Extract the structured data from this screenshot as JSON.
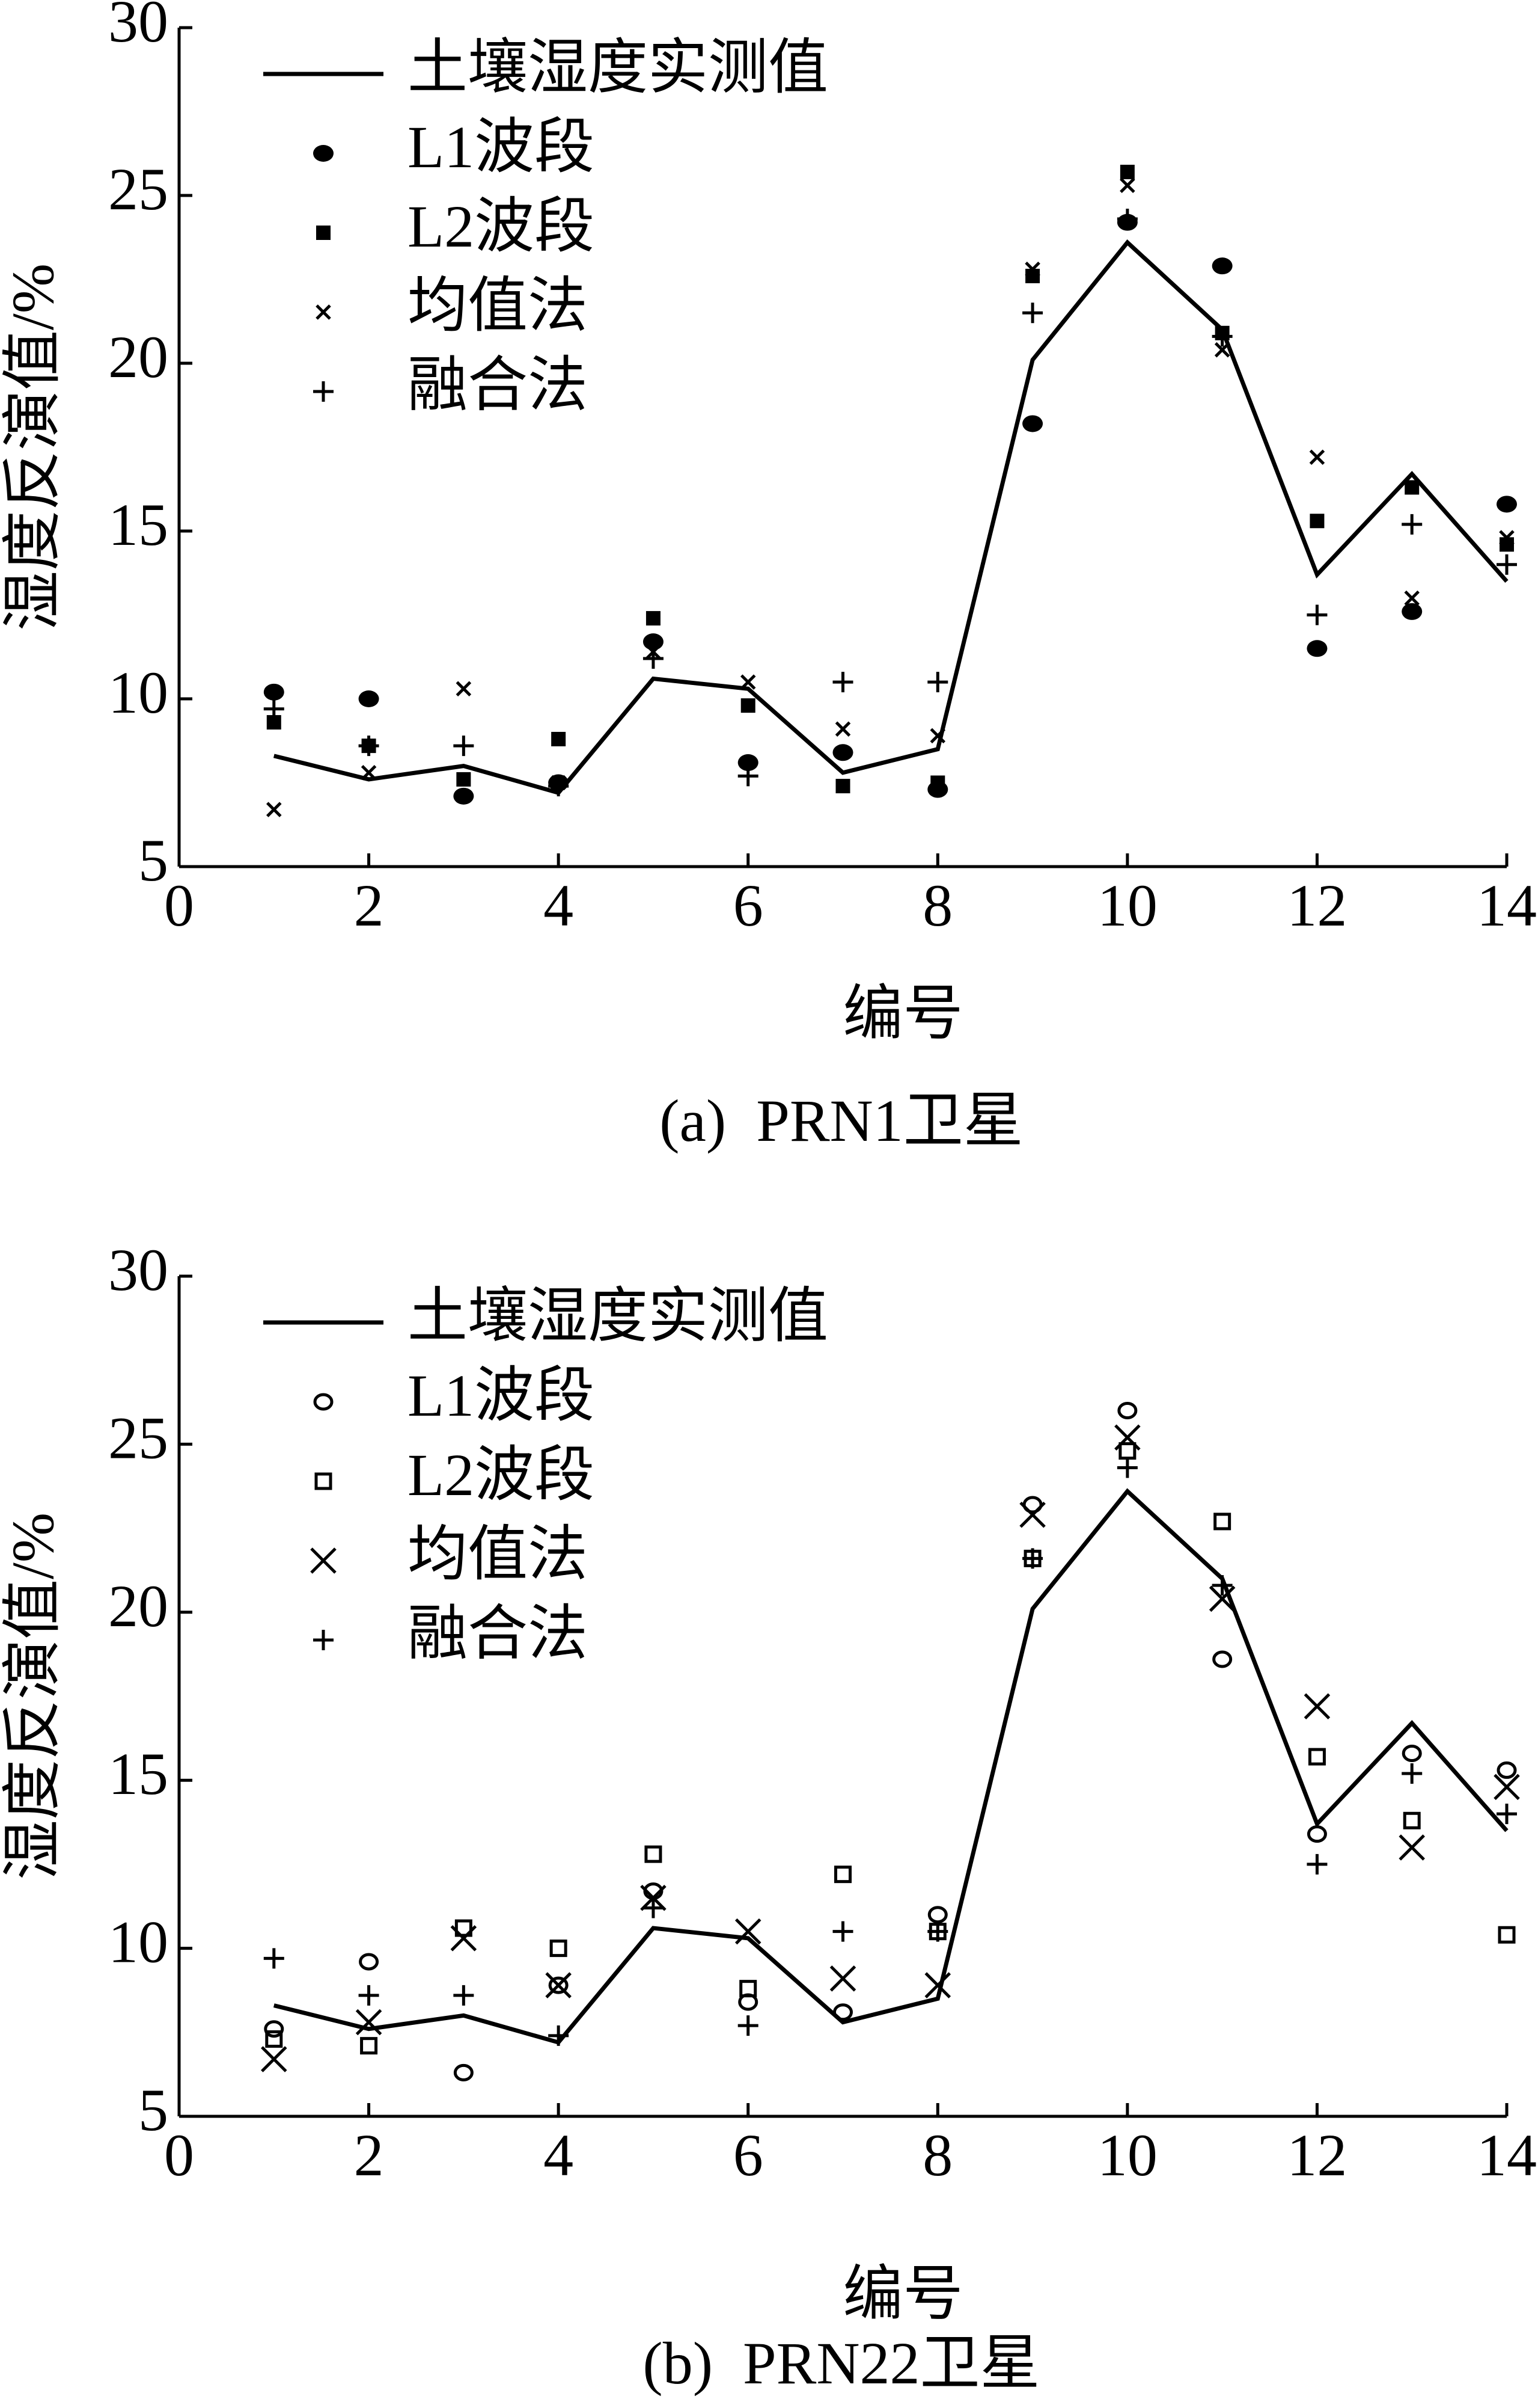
{
  "chart_data": [
    {
      "type": "line",
      "caption": "(a)  PRN1卫星",
      "x_label": "编号",
      "y_label": "湿度反演值/%",
      "x": [
        1,
        2,
        3,
        4,
        5,
        6,
        7,
        8,
        9,
        10,
        11,
        12,
        13,
        14
      ],
      "xlim": [
        0,
        14
      ],
      "xticks": [
        0,
        2,
        4,
        6,
        8,
        10,
        12,
        14
      ],
      "ylim": [
        5,
        30
      ],
      "yticks": [
        5,
        10,
        15,
        20,
        25,
        30
      ],
      "grid": false,
      "legend": "upper left",
      "series": [
        {
          "name": "土壤湿度实测值",
          "color": "#000000",
          "style": "line",
          "values": [
            8.3,
            7.6,
            8.0,
            7.2,
            10.6,
            10.3,
            7.8,
            8.5,
            20.1,
            23.6,
            21.0,
            13.7,
            16.7,
            13.5
          ]
        },
        {
          "name": "L1波段",
          "color": "#000000",
          "style": "filled-circle",
          "values": [
            10.2,
            10.0,
            7.1,
            7.5,
            11.7,
            8.1,
            8.4,
            7.3,
            18.2,
            24.2,
            22.9,
            11.5,
            12.6,
            15.8
          ]
        },
        {
          "name": "L2波段",
          "color": "#000000",
          "style": "filled-square",
          "values": [
            9.3,
            8.6,
            7.6,
            8.8,
            12.4,
            9.8,
            7.4,
            7.5,
            22.6,
            25.7,
            20.9,
            15.3,
            16.3,
            14.6
          ]
        },
        {
          "name": "均值法",
          "color": "#000000",
          "style": "small-x",
          "values": [
            6.7,
            7.8,
            10.3,
            7.5,
            11.4,
            10.5,
            9.1,
            8.9,
            22.8,
            25.3,
            20.4,
            17.2,
            13.0,
            14.8
          ]
        },
        {
          "name": "融合法",
          "color": "#000000",
          "style": "plus",
          "values": [
            9.7,
            8.6,
            8.6,
            7.4,
            11.2,
            7.7,
            10.5,
            10.5,
            21.5,
            24.3,
            20.8,
            12.5,
            15.2,
            14.0
          ]
        }
      ]
    },
    {
      "type": "line",
      "caption": "(b)  PRN22卫星",
      "x_label": "编号",
      "y_label": "湿度反演值/%",
      "x": [
        1,
        2,
        3,
        4,
        5,
        6,
        7,
        8,
        9,
        10,
        11,
        12,
        13,
        14
      ],
      "xlim": [
        0,
        14
      ],
      "xticks": [
        0,
        2,
        4,
        6,
        8,
        10,
        12,
        14
      ],
      "ylim": [
        5,
        30
      ],
      "yticks": [
        5,
        10,
        15,
        20,
        25,
        30
      ],
      "grid": false,
      "legend": "upper left",
      "series": [
        {
          "name": "土壤湿度实测值",
          "color": "#000000",
          "style": "line",
          "values": [
            8.3,
            7.6,
            8.0,
            7.2,
            10.6,
            10.3,
            7.8,
            8.5,
            20.1,
            23.6,
            21.0,
            13.7,
            16.7,
            13.5
          ]
        },
        {
          "name": "L1波段",
          "color": "#000000",
          "style": "open-circle",
          "values": [
            7.6,
            9.6,
            6.3,
            8.9,
            11.7,
            8.4,
            8.1,
            11.0,
            23.2,
            26.0,
            18.6,
            13.4,
            15.8,
            15.3
          ]
        },
        {
          "name": "L2波段",
          "color": "#000000",
          "style": "open-square",
          "values": [
            7.3,
            7.1,
            10.6,
            10.0,
            12.8,
            8.8,
            12.2,
            10.5,
            21.6,
            24.8,
            22.7,
            15.7,
            13.8,
            10.4
          ]
        },
        {
          "name": "均值法",
          "color": "#000000",
          "style": "large-x",
          "values": [
            6.7,
            7.8,
            10.3,
            8.9,
            11.5,
            10.5,
            9.1,
            8.9,
            22.9,
            25.2,
            20.4,
            17.2,
            13.0,
            14.8
          ]
        },
        {
          "name": "融合法",
          "color": "#000000",
          "style": "plus",
          "values": [
            9.7,
            8.6,
            8.6,
            7.4,
            11.2,
            7.7,
            10.5,
            10.5,
            21.6,
            24.3,
            20.8,
            12.5,
            15.2,
            14.0
          ]
        }
      ]
    }
  ]
}
